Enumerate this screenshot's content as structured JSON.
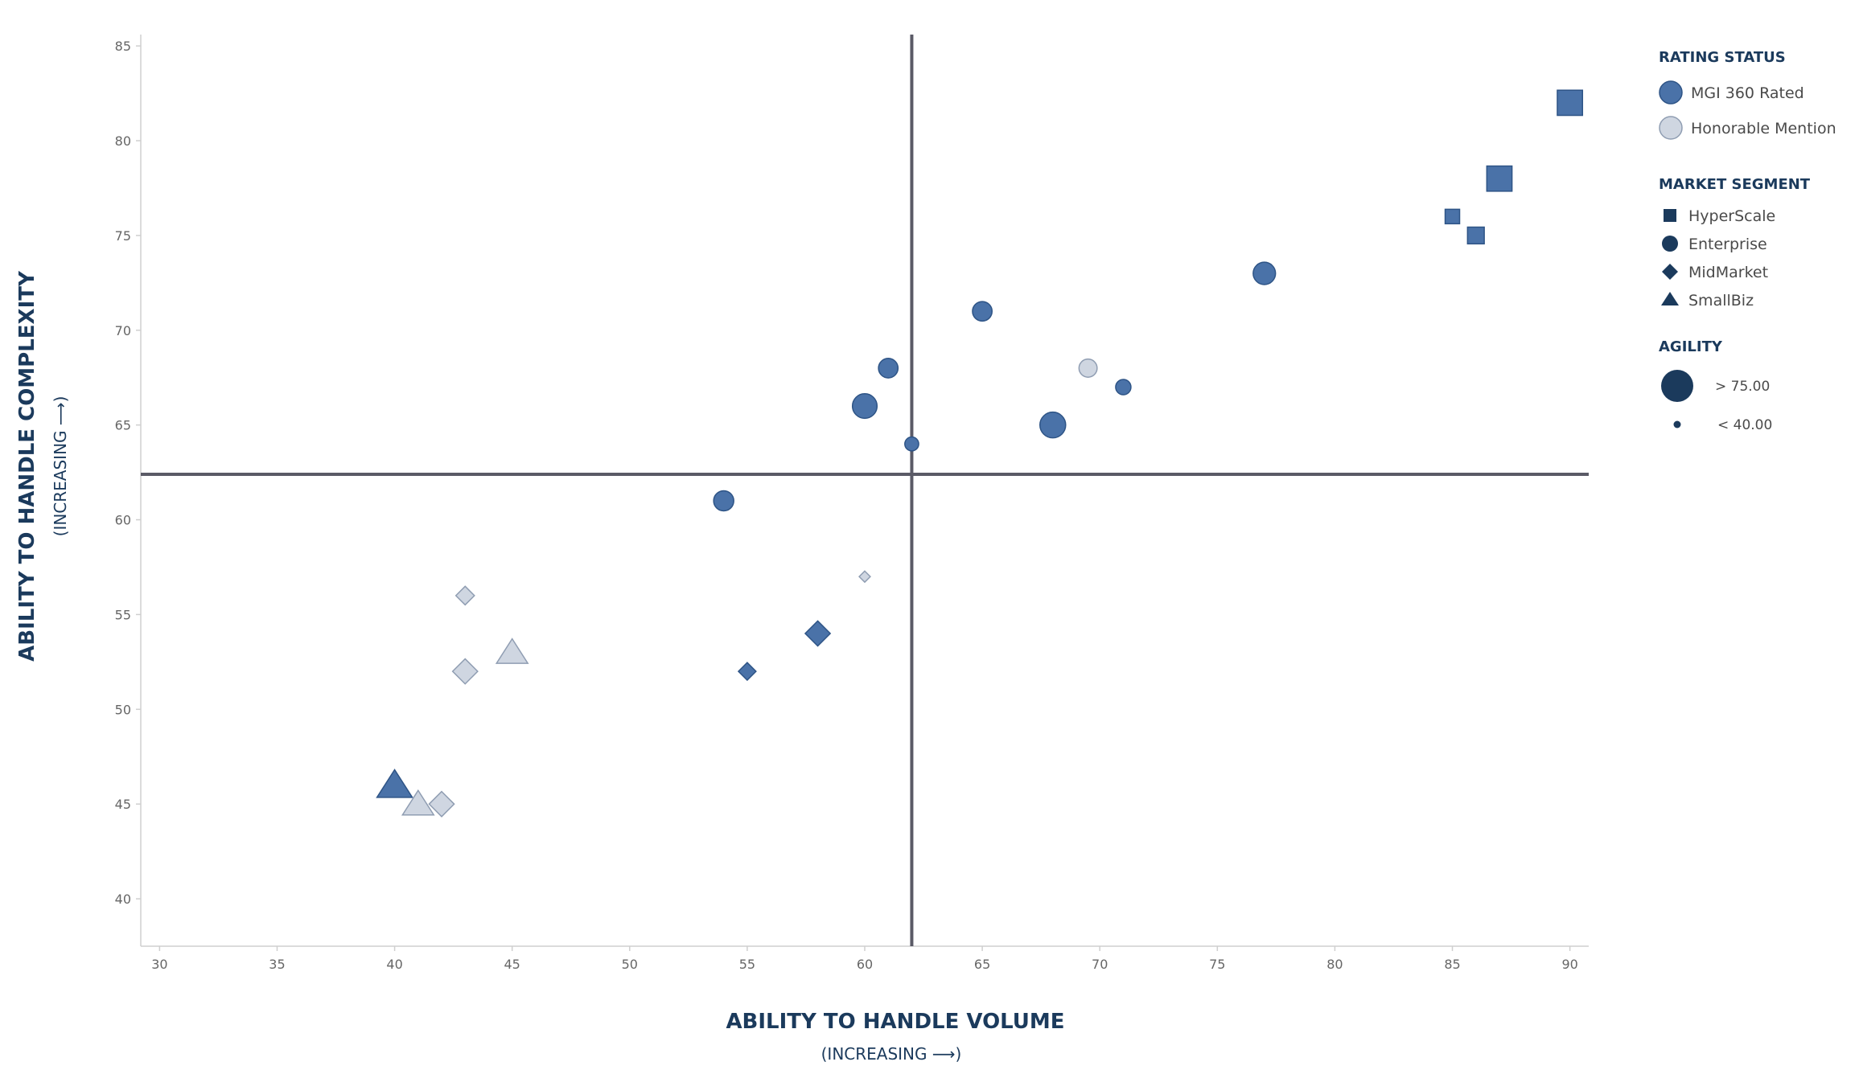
{
  "chart_data": {
    "type": "scatter",
    "xlabel": "ABILITY TO HANDLE VOLUME",
    "xlabel_sub": "(INCREASING ⟶)",
    "ylabel": "ABILITY TO HANDLE COMPLEXITY",
    "ylabel_sub": "(INCREASING ⟶)",
    "xlim": [
      29.2,
      90.8
    ],
    "ylim": [
      37.5,
      85.6
    ],
    "x_ticks": [
      30,
      35,
      40,
      45,
      50,
      55,
      60,
      65,
      70,
      75,
      80,
      85,
      90
    ],
    "y_ticks": [
      40,
      45,
      50,
      55,
      60,
      65,
      70,
      75,
      80,
      85
    ],
    "grid": false,
    "quadrant_lines": {
      "x": 62,
      "y": 62.4
    },
    "colors": {
      "rated": "#4a72a8",
      "rated_stroke": "#2e5486",
      "honorable": "#cfd6e1",
      "honorable_stroke": "#8f9db2",
      "legend_dark": "#1b3a5c",
      "divider": "#5a5a66"
    },
    "legend": {
      "placement": "right",
      "rating_title": "RATING STATUS",
      "rating_items": [
        "MGI 360 Rated",
        "Honorable Mention"
      ],
      "segment_title": "MARKET SEGMENT",
      "segment_items": [
        {
          "label": "HyperScale",
          "shape": "square"
        },
        {
          "label": "Enterprise",
          "shape": "circle"
        },
        {
          "label": "MidMarket",
          "shape": "diamond"
        },
        {
          "label": "SmallBiz",
          "shape": "triangle"
        }
      ],
      "agility_title": "AGILITY",
      "agility_items": [
        "> 75.00",
        "< 40.00"
      ]
    },
    "points": [
      {
        "x": 90,
        "y": 82,
        "segment": "HyperScale",
        "status": "MGI 360 Rated",
        "agility": 80
      },
      {
        "x": 87,
        "y": 78,
        "segment": "HyperScale",
        "status": "MGI 360 Rated",
        "agility": 80
      },
      {
        "x": 85,
        "y": 76,
        "segment": "HyperScale",
        "status": "MGI 360 Rated",
        "agility": 42
      },
      {
        "x": 86,
        "y": 75,
        "segment": "HyperScale",
        "status": "MGI 360 Rated",
        "agility": 50
      },
      {
        "x": 77,
        "y": 73,
        "segment": "Enterprise",
        "status": "MGI 360 Rated",
        "agility": 70
      },
      {
        "x": 65,
        "y": 71,
        "segment": "Enterprise",
        "status": "MGI 360 Rated",
        "agility": 60
      },
      {
        "x": 61,
        "y": 68,
        "segment": "Enterprise",
        "status": "MGI 360 Rated",
        "agility": 60
      },
      {
        "x": 69.5,
        "y": 68,
        "segment": "Enterprise",
        "status": "Honorable Mention",
        "agility": 55
      },
      {
        "x": 71,
        "y": 67,
        "segment": "Enterprise",
        "status": "MGI 360 Rated",
        "agility": 45
      },
      {
        "x": 60,
        "y": 66,
        "segment": "Enterprise",
        "status": "MGI 360 Rated",
        "agility": 78
      },
      {
        "x": 68,
        "y": 65,
        "segment": "Enterprise",
        "status": "MGI 360 Rated",
        "agility": 82
      },
      {
        "x": 62,
        "y": 64,
        "segment": "Enterprise",
        "status": "MGI 360 Rated",
        "agility": 40
      },
      {
        "x": 54,
        "y": 61,
        "segment": "Enterprise",
        "status": "MGI 360 Rated",
        "agility": 62
      },
      {
        "x": 60,
        "y": 57,
        "segment": "MidMarket",
        "status": "Honorable Mention",
        "agility": 25
      },
      {
        "x": 43,
        "y": 56,
        "segment": "MidMarket",
        "status": "Honorable Mention",
        "agility": 48
      },
      {
        "x": 58,
        "y": 54,
        "segment": "MidMarket",
        "status": "MGI 360 Rated",
        "agility": 68
      },
      {
        "x": 45,
        "y": 53,
        "segment": "SmallBiz",
        "status": "Honorable Mention",
        "agility": 68
      },
      {
        "x": 43,
        "y": 52,
        "segment": "MidMarket",
        "status": "Honorable Mention",
        "agility": 68
      },
      {
        "x": 55,
        "y": 52,
        "segment": "MidMarket",
        "status": "MGI 360 Rated",
        "agility": 45
      },
      {
        "x": 40,
        "y": 46,
        "segment": "SmallBiz",
        "status": "MGI 360 Rated",
        "agility": 78
      },
      {
        "x": 41,
        "y": 45,
        "segment": "SmallBiz",
        "status": "Honorable Mention",
        "agility": 68
      },
      {
        "x": 42,
        "y": 45,
        "segment": "MidMarket",
        "status": "Honorable Mention",
        "agility": 68
      }
    ]
  }
}
